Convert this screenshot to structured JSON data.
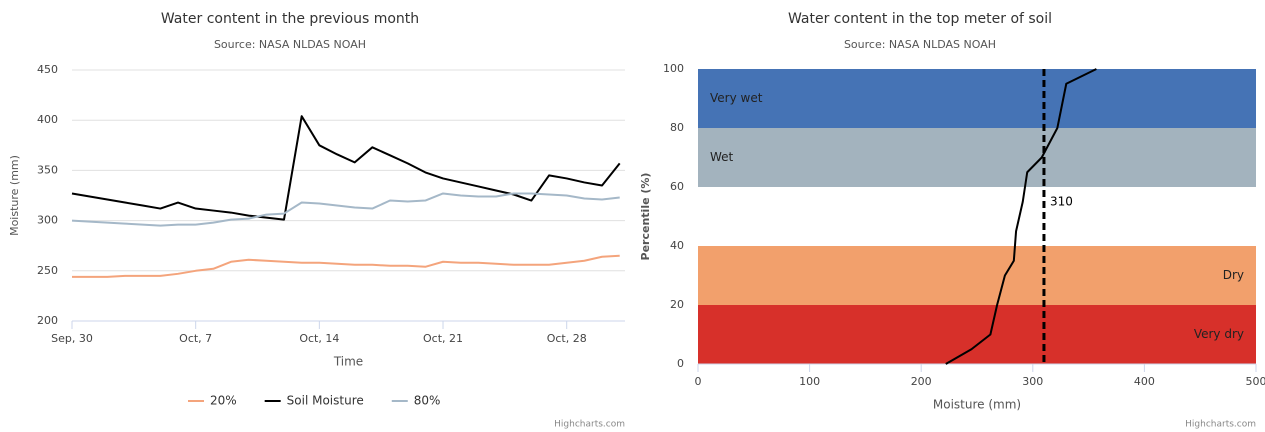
{
  "chart_data": [
    {
      "type": "line",
      "title": "Water content in the previous month",
      "subtitle": "Source: NASA NLDAS NOAH",
      "x_label": "Time",
      "y_label": "Moisture (mm)",
      "categories": [
        "Sep, 30",
        null,
        null,
        null,
        null,
        null,
        null,
        "Oct, 7",
        null,
        null,
        null,
        null,
        null,
        null,
        "Oct, 14",
        null,
        null,
        null,
        null,
        null,
        null,
        "Oct, 21",
        null,
        null,
        null,
        null,
        null,
        null,
        "Oct, 28",
        null,
        null,
        null
      ],
      "series": [
        {
          "name": "20%",
          "color": "#f4a47c",
          "values": [
            244,
            244,
            244,
            245,
            245,
            245,
            247,
            250,
            252,
            259,
            261,
            260,
            259,
            258,
            258,
            257,
            256,
            256,
            255,
            255,
            254,
            259,
            258,
            258,
            257,
            256,
            256,
            256,
            258,
            260,
            264,
            265
          ]
        },
        {
          "name": "Soil Moisture",
          "color": "#000000",
          "values": [
            327,
            324,
            321,
            318,
            315,
            312,
            318,
            312,
            310,
            308,
            305,
            303,
            301,
            404,
            375,
            366,
            358,
            373,
            365,
            357,
            348,
            342,
            338,
            334,
            330,
            326,
            320,
            345,
            342,
            338,
            335,
            357
          ]
        },
        {
          "name": "80%",
          "color": "#a5b8c8",
          "values": [
            300,
            299,
            298,
            297,
            296,
            295,
            296,
            296,
            298,
            301,
            302,
            306,
            307,
            318,
            317,
            315,
            313,
            312,
            320,
            319,
            320,
            327,
            325,
            324,
            324,
            327,
            327,
            326,
            325,
            322,
            321,
            323
          ]
        }
      ],
      "ylim": [
        200,
        450
      ],
      "yticks": [
        200,
        250,
        300,
        350,
        400,
        450
      ],
      "grid": true,
      "legend": "bottom",
      "credits": "Highcharts.com"
    },
    {
      "type": "line",
      "title": "Water content in the top meter of soil",
      "subtitle": "Source: NASA NLDAS NOAH",
      "x_label": "Moisture (mm)",
      "y_label": "Percentile (%)",
      "series": [
        {
          "color": "#000000",
          "x": [
            222,
            245,
            262,
            268,
            275,
            283,
            285,
            291,
            295,
            308,
            322,
            330,
            357
          ],
          "values": [
            0,
            5,
            10,
            20,
            30,
            35,
            45,
            55,
            65,
            70,
            80,
            95,
            100
          ]
        }
      ],
      "xlim": [
        0,
        500
      ],
      "xticks": [
        0,
        100,
        200,
        300,
        400,
        500
      ],
      "ylim": [
        0,
        100
      ],
      "yticks": [
        0,
        20,
        40,
        60,
        80,
        100
      ],
      "bands": [
        {
          "label": "Very wet",
          "from": 80,
          "to": 100,
          "color": "#4573b5",
          "align": "left"
        },
        {
          "label": "Wet",
          "from": 60,
          "to": 80,
          "color": "#a3b3be",
          "align": "left"
        },
        {
          "label": "Dry",
          "from": 20,
          "to": 40,
          "color": "#f2a06c",
          "align": "right"
        },
        {
          "label": "Very dry",
          "from": 0,
          "to": 20,
          "color": "#d7302a",
          "align": "right"
        }
      ],
      "marker": {
        "value": 310
      },
      "credits": "Highcharts.com"
    }
  ]
}
